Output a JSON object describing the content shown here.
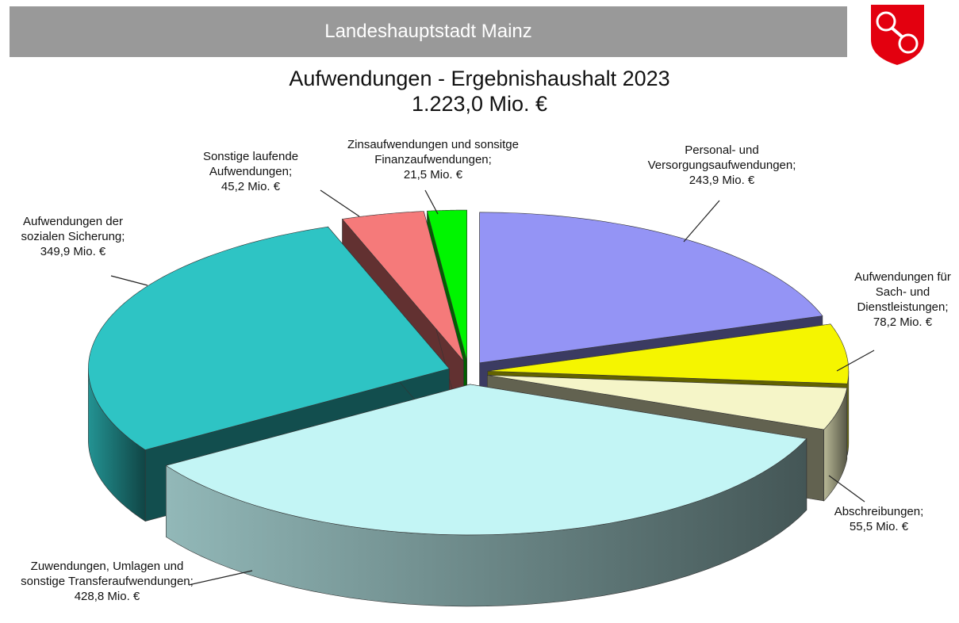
{
  "header": {
    "title": "Landeshauptstadt Mainz"
  },
  "chart_data": {
    "type": "pie3d",
    "title": "Aufwendungen - Ergebnishaushalt 2023",
    "subtitle": "1.223,0 Mio. €",
    "categories": [
      "Personal- und Versorgungsaufwendungen;",
      "Aufwendungen für Sach- und Dienstleistungen;",
      "Abschreibungen;",
      "Zuwendungen, Umlagen und sonstige Transferaufwendungen;",
      "Aufwendungen der sozialen Sicherung;",
      "Sonstige laufende Aufwendungen;",
      "Zinsaufwendungen und sonsitge Finanzaufwendungen;"
    ],
    "values": [
      243.9,
      78.2,
      55.5,
      428.8,
      349.9,
      45.2,
      21.5
    ],
    "value_labels": [
      "243,9 Mio. €",
      "78,2 Mio. €",
      "55,5 Mio. €",
      "428,8 Mio. €",
      "349,9 Mio. €",
      "45,2 Mio. €",
      "21,5 Mio. €"
    ],
    "colors": [
      "#9494f5",
      "#f5f500",
      "#f5f5c8",
      "#c3f5f5",
      "#2ec4c4",
      "#f57a7a",
      "#00f500"
    ]
  }
}
